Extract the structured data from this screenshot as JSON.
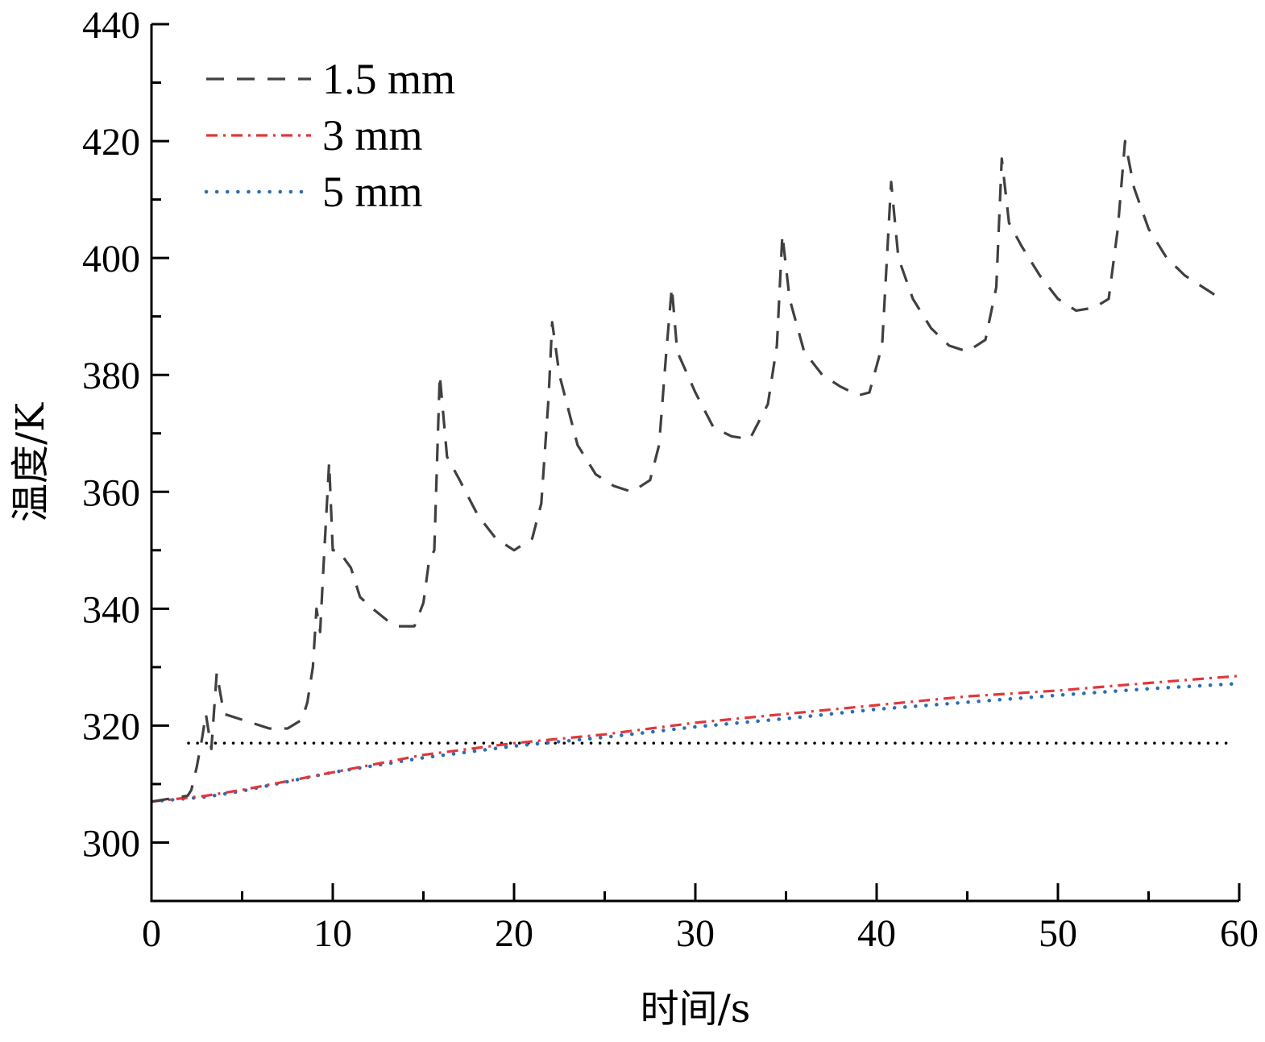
{
  "chart_data": {
    "type": "line",
    "xlabel": "时间/s",
    "ylabel": "温度/K",
    "xlim": [
      0,
      60
    ],
    "ylim": [
      290,
      440
    ],
    "x_ticks": [
      0,
      10,
      20,
      30,
      40,
      50,
      60
    ],
    "y_ticks": [
      300,
      320,
      340,
      360,
      380,
      400,
      420,
      440
    ],
    "x_minor_step": 5,
    "y_minor_step": 10,
    "grid": false,
    "legend": "top-left",
    "reference_line": {
      "y": 317,
      "color": "#000000",
      "style": "dotted"
    },
    "series": [
      {
        "name": "1.5 mm",
        "color": "#404040",
        "style": "dashed",
        "points": [
          [
            0,
            307
          ],
          [
            2,
            308
          ],
          [
            2.2,
            309
          ],
          [
            2.5,
            313
          ],
          [
            2.8,
            318
          ],
          [
            3.0,
            322
          ],
          [
            3.3,
            316
          ],
          [
            3.6,
            329
          ],
          [
            4.0,
            322
          ],
          [
            5.0,
            321
          ],
          [
            6.5,
            319.5
          ],
          [
            7.5,
            319.5
          ],
          [
            8.3,
            321
          ],
          [
            8.6,
            324
          ],
          [
            8.9,
            330
          ],
          [
            9.1,
            340
          ],
          [
            9.3,
            336
          ],
          [
            9.5,
            348
          ],
          [
            9.8,
            365
          ],
          [
            10.0,
            350
          ],
          [
            10.3,
            350
          ],
          [
            11.0,
            347
          ],
          [
            11.5,
            342
          ],
          [
            12.2,
            340
          ],
          [
            13.0,
            338
          ],
          [
            13.5,
            337
          ],
          [
            14.5,
            337
          ],
          [
            15.0,
            341
          ],
          [
            15.3,
            348
          ],
          [
            15.6,
            350
          ],
          [
            15.9,
            380
          ],
          [
            16.3,
            366
          ],
          [
            17.0,
            362
          ],
          [
            18.0,
            356
          ],
          [
            19.0,
            352
          ],
          [
            20.0,
            350
          ],
          [
            21.0,
            352
          ],
          [
            21.5,
            358
          ],
          [
            21.9,
            376
          ],
          [
            22.1,
            389
          ],
          [
            22.5,
            380
          ],
          [
            23.5,
            368
          ],
          [
            24.5,
            363
          ],
          [
            25.5,
            361
          ],
          [
            26.5,
            360
          ],
          [
            27.5,
            362
          ],
          [
            28.0,
            368
          ],
          [
            28.4,
            384
          ],
          [
            28.7,
            395
          ],
          [
            29.0,
            384
          ],
          [
            30.0,
            377
          ],
          [
            31.0,
            371
          ],
          [
            32.0,
            369.5
          ],
          [
            33.0,
            369
          ],
          [
            34.0,
            375
          ],
          [
            34.5,
            385
          ],
          [
            34.8,
            404
          ],
          [
            35.2,
            393
          ],
          [
            36.0,
            384
          ],
          [
            37.0,
            380
          ],
          [
            38.0,
            378
          ],
          [
            39.0,
            376.5
          ],
          [
            39.6,
            377
          ],
          [
            40.3,
            385
          ],
          [
            40.8,
            413
          ],
          [
            41.2,
            400
          ],
          [
            42.0,
            393
          ],
          [
            43.0,
            388
          ],
          [
            44.0,
            385
          ],
          [
            45.0,
            384
          ],
          [
            46.0,
            386
          ],
          [
            46.6,
            395
          ],
          [
            46.9,
            417
          ],
          [
            47.3,
            406
          ],
          [
            48.0,
            402
          ],
          [
            49.0,
            397
          ],
          [
            50.0,
            393
          ],
          [
            51.0,
            391
          ],
          [
            52.0,
            391.5
          ],
          [
            52.8,
            393
          ],
          [
            53.3,
            405
          ],
          [
            53.7,
            420
          ],
          [
            54.2,
            412
          ],
          [
            55.0,
            405
          ],
          [
            56.0,
            400
          ],
          [
            57.0,
            397
          ],
          [
            58.0,
            395
          ],
          [
            59.0,
            393
          ]
        ]
      },
      {
        "name": "3 mm",
        "color": "#e0373a",
        "style": "dash-dot",
        "points": [
          [
            0,
            307
          ],
          [
            3,
            308
          ],
          [
            5,
            309
          ],
          [
            10,
            312
          ],
          [
            15,
            315
          ],
          [
            20,
            317
          ],
          [
            25,
            318.5
          ],
          [
            30,
            320.5
          ],
          [
            35,
            322
          ],
          [
            40,
            323.5
          ],
          [
            45,
            325
          ],
          [
            50,
            326
          ],
          [
            55,
            327.3
          ],
          [
            60,
            328.5
          ]
        ]
      },
      {
        "name": "5 mm",
        "color": "#2a6db5",
        "style": "dotted",
        "points": [
          [
            0,
            307
          ],
          [
            3,
            307.8
          ],
          [
            5,
            308.8
          ],
          [
            10,
            312
          ],
          [
            15,
            314.5
          ],
          [
            20,
            316.5
          ],
          [
            25,
            318
          ],
          [
            30,
            319.8
          ],
          [
            35,
            321.2
          ],
          [
            40,
            322.8
          ],
          [
            45,
            324
          ],
          [
            50,
            325.2
          ],
          [
            55,
            326.3
          ],
          [
            60,
            327.2
          ]
        ]
      }
    ]
  }
}
